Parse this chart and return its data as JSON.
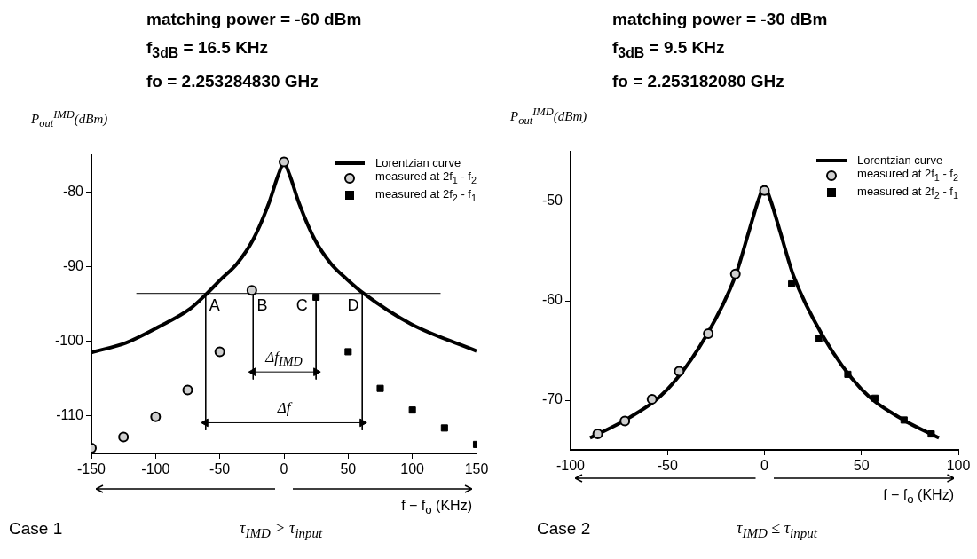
{
  "chart_data": [
    {
      "type": "line",
      "title": "matching power = -60 dBm",
      "subtitle": "f$_{3dB}$ = 16.5 KHz",
      "xlabel": "f − f$_{o}$  (KHz)",
      "ylabel": "P$_{out}$$^{IMD}$(dBm)",
      "xlim": [
        -150,
        150
      ],
      "xticks": [
        -150,
        -100,
        -50,
        0,
        50,
        100,
        150
      ],
      "ylim": [
        -115,
        -75
      ],
      "yticks": [
        -80,
        -90,
        -100,
        -110
      ],
      "grid": false,
      "legend": "top right",
      "series": [
        {
          "name": "Lorentzian curve",
          "type": "line",
          "color": "#000000",
          "x": [
            -150,
            -123,
            -98,
            -73.5,
            -60,
            -49,
            -36.5,
            -24,
            -11.7,
            -4.3,
            0,
            4.3,
            11.7,
            24,
            36.5,
            49,
            62,
            99,
            150
          ],
          "values": [
            -101.5,
            -100.2,
            -98.1,
            -95.7,
            -93.6,
            -91.7,
            -89.6,
            -86.4,
            -81.5,
            -77.7,
            -76.2,
            -77.7,
            -81.5,
            -86.4,
            -89.6,
            -91.7,
            -93.6,
            -97.7,
            -101.3
          ]
        },
        {
          "name": "measured at 2f$_{1}$ - f$_{2}$",
          "type": "scatter",
          "marker": "circle",
          "color": "#000000",
          "x": [
            -150,
            -125,
            -100,
            -75,
            -50,
            -25,
            0
          ],
          "values": [
            -114.3,
            -112.8,
            -110.1,
            -106.5,
            -101.4,
            -93.2,
            -76
          ]
        },
        {
          "name": "measured at 2f$_{2}$ - f$_{1}$",
          "type": "scatter",
          "marker": "square",
          "color": "#000000",
          "x": [
            25,
            50,
            75,
            100,
            125,
            150
          ],
          "values": [
            -94.1,
            -101.4,
            -106.3,
            -109.2,
            -111.6,
            -113.8
          ]
        },
        {
          "type": "line",
          "color": "#000000",
          "x": [
            -115,
            122
          ],
          "values": [
            -93.6,
            -93.6
          ]
        },
        {
          "type": "line",
          "color": "#000000",
          "x": [
            -61,
            -61
          ],
          "values": [
            -93.6,
            -111.9
          ]
        },
        {
          "type": "line",
          "color": "#000000",
          "x": [
            -24,
            -24
          ],
          "values": [
            -93.6,
            -105.1
          ]
        },
        {
          "type": "line",
          "color": "#000000",
          "x": [
            25,
            25
          ],
          "values": [
            -94.1,
            -105.1
          ]
        },
        {
          "type": "line",
          "color": "#000000",
          "x": [
            61,
            61
          ],
          "values": [
            -93.6,
            -111.9
          ]
        },
        {
          "type": "line",
          "marker": "triangle",
          "color": "#000000",
          "x": [
            -24,
            25
          ],
          "values": [
            -104.1,
            -104.1
          ]
        },
        {
          "type": "line",
          "marker": "triangle",
          "color": "#000000",
          "x": [
            -61,
            61
          ],
          "values": [
            -110.9,
            -110.9
          ]
        }
      ],
      "annotations": [
        "fo = 2.253284830 GHz",
        {
          "text": "A",
          "x": -54,
          "y": -93.6
        },
        {
          "text": "B",
          "x": -17,
          "y": -93.6
        },
        {
          "text": "C",
          "x": 14,
          "y": -93.6
        },
        {
          "text": "D",
          "x": 54,
          "y": -93.6
        },
        {
          "text": "Δf$_{IMD}$",
          "x": 0,
          "y": -104.1
        },
        {
          "text": "Δf",
          "x": 0,
          "y": -110.9
        },
        "Case 1",
        "τ$_{IMD}$ > τ$_{input}$"
      ]
    },
    {
      "type": "line",
      "title": "matching power = -30 dBm",
      "subtitle": "f$_{3dB}$ = 9.5 KHz",
      "xlabel": "f − f$_{o}$  (KHz)",
      "ylabel": "P$_{out}$$^{IMD}$(dBm)",
      "xlim": [
        -100,
        100
      ],
      "xticks": [
        -100,
        -50,
        0,
        50,
        100
      ],
      "ylim": [
        -75,
        -45
      ],
      "yticks": [
        -50,
        -60,
        -70
      ],
      "grid": false,
      "legend": "top right",
      "series": [
        {
          "name": "Lorentzian curve",
          "type": "line",
          "color": "#000000",
          "x": [
            -90,
            -70,
            -50,
            -30,
            -15,
            -8,
            -3,
            0,
            3,
            8,
            15,
            30,
            50,
            70,
            90
          ],
          "values": [
            -73.8,
            -71.8,
            -68.9,
            -63.5,
            -57.5,
            -53,
            -49.8,
            -48.5,
            -49.8,
            -53,
            -57.5,
            -63.5,
            -68.9,
            -71.8,
            -73.8
          ]
        },
        {
          "name": "measured at 2f$_{1}$ - f$_{2}$",
          "type": "scatter",
          "marker": "circle",
          "color": "#000000",
          "x": [
            -86,
            -72,
            -58,
            -44,
            -29,
            -15,
            0
          ],
          "values": [
            -73.4,
            -72.1,
            -69.9,
            -67.1,
            -63.3,
            -57.3,
            -48.9
          ]
        },
        {
          "name": "measured at 2f$_{2}$ - f$_{1}$",
          "type": "scatter",
          "marker": "square",
          "color": "#000000",
          "x": [
            14,
            28,
            43,
            57,
            72,
            86
          ],
          "values": [
            -58.3,
            -63.8,
            -67.4,
            -69.8,
            -72,
            -73.4
          ]
        }
      ],
      "annotations": [
        "fo = 2.253182080 GHz",
        "Case 2",
        "τ$_{IMD}$ ≤ τ$_{input}$"
      ]
    }
  ]
}
